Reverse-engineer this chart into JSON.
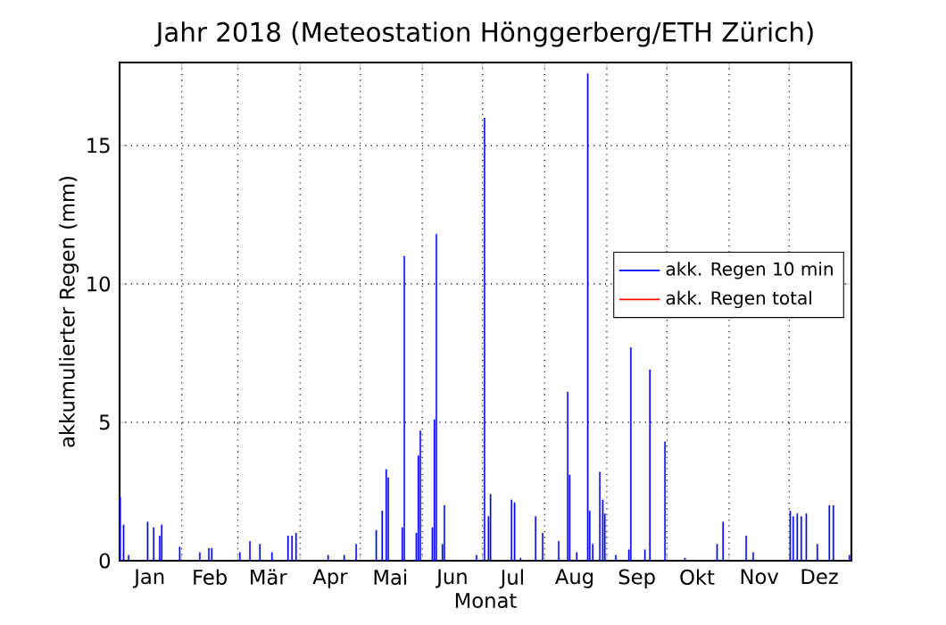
{
  "chart_data": {
    "type": "bar",
    "title": "Jahr 2018   (Meteostation Hönggerberg/ETH Zürich)",
    "xlabel": "Monat",
    "ylabel": "akkumulierter Regen (mm)",
    "x": [
      "2018-01-01T07:12",
      "2018-01-03",
      "2018-01-05T12:00",
      "2018-01-15",
      "2018-01-18",
      "2018-01-21",
      "2018-01-22",
      "2018-01-31",
      "2018-02-10",
      "2018-02-14T12:00",
      "2018-02-16",
      "2018-03-02",
      "2018-03-07",
      "2018-03-12",
      "2018-03-18",
      "2018-03-26",
      "2018-03-28",
      "2018-03-30",
      "2018-04-15",
      "2018-04-23",
      "2018-04-29",
      "2018-05-09",
      "2018-05-12",
      "2018-05-14",
      "2018-05-15",
      "2018-05-22",
      "2018-05-23",
      "2018-05-29",
      "2018-05-30",
      "2018-05-31",
      "2018-06-06",
      "2018-06-07",
      "2018-06-08",
      "2018-06-11",
      "2018-06-12",
      "2018-06-28",
      "2018-07-02",
      "2018-07-04",
      "2018-07-05",
      "2018-07-15T12:00",
      "2018-07-17",
      "2018-07-20",
      "2018-07-27T12:00",
      "2018-07-31",
      "2018-08-08",
      "2018-08-12T12:00",
      "2018-08-13T12:00",
      "2018-08-17",
      "2018-08-22T12:00",
      "2018-08-23T12:00",
      "2018-08-25",
      "2018-08-28T12:00",
      "2018-08-30",
      "2018-08-31",
      "2018-09-05T12:00",
      "2018-09-12",
      "2018-09-13",
      "2018-09-20",
      "2018-09-22T12:00",
      "2018-09-30",
      "2018-10-10",
      "2018-10-26",
      "2018-10-29",
      "2018-11-09T12:00",
      "2018-11-13",
      "2018-12-01T12:00",
      "2018-12-03",
      "2018-12-05",
      "2018-12-07",
      "2018-12-09T12:00",
      "2018-12-15",
      "2018-12-21",
      "2018-12-23",
      "2018-12-31"
    ],
    "series": [
      {
        "name": "akk. Regen 10 min",
        "color": "#0000ff",
        "values": [
          2.3,
          1.3,
          0.2,
          1.4,
          1.2,
          0.9,
          1.3,
          0.5,
          0.3,
          0.45,
          0.45,
          0.3,
          0.7,
          0.6,
          0.3,
          0.9,
          0.9,
          1.0,
          0.2,
          0.2,
          0.6,
          1.1,
          1.8,
          3.3,
          3.0,
          1.2,
          11.0,
          1.0,
          3.8,
          4.7,
          1.2,
          5.1,
          11.8,
          0.6,
          2.0,
          0.2,
          16.0,
          1.6,
          2.4,
          2.2,
          2.1,
          0.1,
          1.6,
          1.0,
          0.7,
          6.1,
          3.1,
          0.3,
          17.6,
          1.8,
          0.6,
          3.2,
          2.2,
          1.7,
          0.2,
          0.4,
          7.7,
          0.4,
          6.9,
          4.3,
          0.1,
          0.6,
          1.4,
          0.9,
          0.3,
          1.8,
          1.6,
          1.7,
          1.6,
          1.7,
          0.6,
          2.0,
          2.0,
          0.2
        ]
      },
      {
        "name": "akk. Regen total",
        "color": "#ff0000",
        "values": [
          null,
          null,
          null,
          null,
          null,
          null,
          null,
          null,
          null,
          null,
          null,
          null,
          null,
          null,
          null,
          null,
          null,
          null,
          null,
          null,
          null,
          null,
          null,
          null,
          null,
          null,
          null,
          null,
          null,
          null,
          null,
          null,
          null,
          null,
          null,
          null,
          null,
          null,
          null,
          null,
          null,
          null,
          null,
          null,
          null,
          null,
          null,
          null,
          null,
          null,
          null,
          null,
          null,
          null,
          null,
          null,
          null,
          null,
          null,
          null,
          null,
          null,
          null,
          null,
          null,
          null,
          null,
          null,
          null,
          null,
          null,
          null,
          null,
          null
        ]
      }
    ],
    "xlim": [
      "2018-01-01",
      "2019-01-01"
    ],
    "ylim": [
      0,
      18
    ],
    "xticks": [
      {
        "value": "2018-02-01",
        "label": null
      },
      {
        "value": "2018-03-01",
        "label": null
      },
      {
        "value": "2018-04-01",
        "label": null
      },
      {
        "value": "2018-05-01",
        "label": null
      },
      {
        "value": "2018-06-01",
        "label": null
      },
      {
        "value": "2018-07-01",
        "label": null
      },
      {
        "value": "2018-08-01",
        "label": null
      },
      {
        "value": "2018-09-01",
        "label": null
      },
      {
        "value": "2018-10-01",
        "label": null
      },
      {
        "value": "2018-11-01",
        "label": null
      },
      {
        "value": "2018-12-01",
        "label": null
      },
      {
        "value": "2018-01-16",
        "label": "Jan"
      },
      {
        "value": "2018-02-15",
        "label": "Feb"
      },
      {
        "value": "2018-03-16",
        "label": "Mär"
      },
      {
        "value": "2018-04-16",
        "label": "Apr"
      },
      {
        "value": "2018-05-16",
        "label": "Mai"
      },
      {
        "value": "2018-06-16",
        "label": "Jun"
      },
      {
        "value": "2018-07-16",
        "label": "Jul"
      },
      {
        "value": "2018-08-16",
        "label": "Aug"
      },
      {
        "value": "2018-09-16",
        "label": "Sep"
      },
      {
        "value": "2018-10-16",
        "label": "Okt"
      },
      {
        "value": "2018-11-16",
        "label": "Nov"
      },
      {
        "value": "2018-12-16",
        "label": "Dez"
      }
    ],
    "yticks": [
      0,
      5,
      10,
      15
    ],
    "grid": true,
    "legend": "right"
  }
}
